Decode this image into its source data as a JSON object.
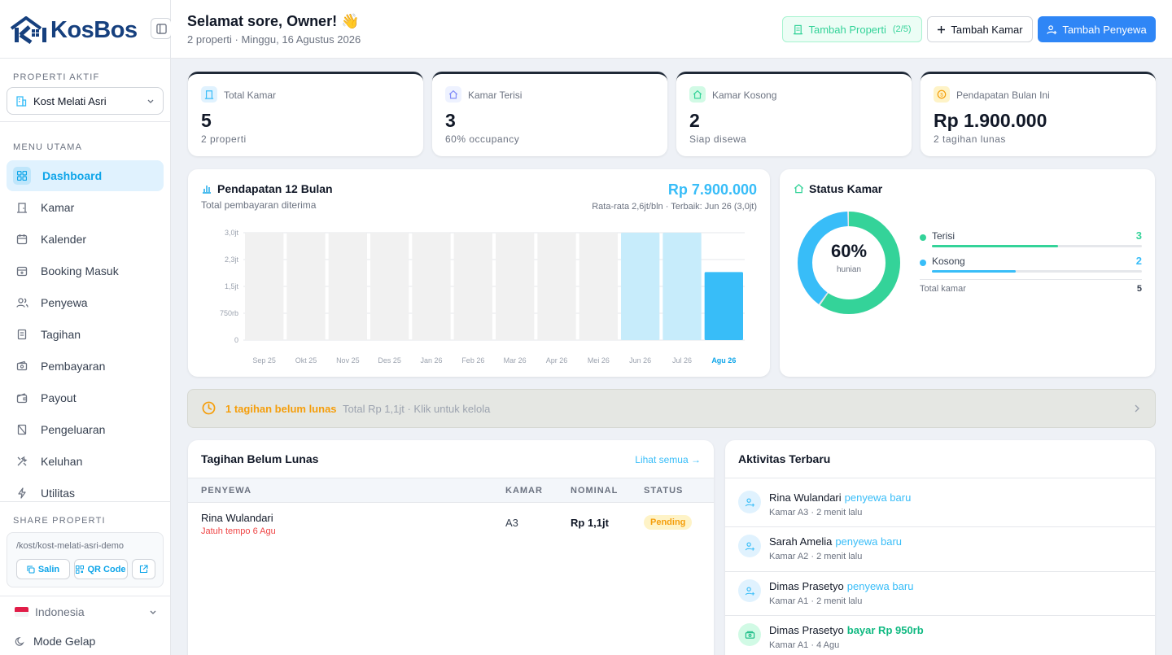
{
  "brand": {
    "name": "KosBos"
  },
  "sidebar": {
    "active_property_label": "PROPERTI AKTIF",
    "active_property": "Kost Melati Asri",
    "menu_label": "MENU UTAMA",
    "menu": [
      {
        "label": "Dashboard",
        "icon": "dashboard-icon",
        "active": true
      },
      {
        "label": "Kamar",
        "icon": "door-icon"
      },
      {
        "label": "Kalender",
        "icon": "calendar-icon"
      },
      {
        "label": "Booking Masuk",
        "icon": "calendar-plus-icon"
      },
      {
        "label": "Penyewa",
        "icon": "users-icon"
      },
      {
        "label": "Tagihan",
        "icon": "receipt-icon"
      },
      {
        "label": "Pembayaran",
        "icon": "payment-icon"
      },
      {
        "label": "Payout",
        "icon": "wallet-icon"
      },
      {
        "label": "Pengeluaran",
        "icon": "expense-icon"
      },
      {
        "label": "Keluhan",
        "icon": "tools-icon"
      },
      {
        "label": "Utilitas",
        "icon": "bolt-icon"
      }
    ],
    "share_label": "SHARE PROPERTI",
    "share_url": "/kost/kost-melati-asri-demo",
    "copy_label": "Salin",
    "qr_label": "QR Code",
    "language": "Indonesia",
    "dark_mode": "Mode Gelap"
  },
  "header": {
    "greeting": "Selamat sore, Owner! 👋",
    "subtitle": "2 properti · Minggu, 16 Agustus 2026",
    "add_property": "Tambah Properti",
    "add_property_count": "(2/5)",
    "add_room": "Tambah Kamar",
    "add_tenant": "Tambah Penyewa"
  },
  "stats": [
    {
      "label": "Total Kamar",
      "value": "5",
      "sub": "2 properti",
      "color": "#38bdf8"
    },
    {
      "label": "Kamar Terisi",
      "value": "3",
      "sub": "60% occupancy",
      "color": "#818cf8"
    },
    {
      "label": "Kamar Kosong",
      "value": "2",
      "sub": "Siap disewa",
      "color": "#34d399"
    },
    {
      "label": "Pendapatan Bulan Ini",
      "value": "Rp 1.900.000",
      "sub": "2 tagihan lunas",
      "color": "#fbbf24"
    }
  ],
  "revenue": {
    "title": "Pendapatan 12 Bulan",
    "subtitle": "Total pembayaran diterima",
    "total": "Rp 7.900.000",
    "summary": "Rata-rata 2,6jt/bln · Terbaik: Jun 26 (3,0jt)"
  },
  "chart_data": {
    "type": "bar",
    "categories": [
      "Sep 25",
      "Okt 25",
      "Nov 25",
      "Des 25",
      "Jan 26",
      "Feb 26",
      "Mar 26",
      "Apr 26",
      "Mei 26",
      "Jun 26",
      "Jul 26",
      "Agu 26"
    ],
    "values": [
      0,
      0,
      0,
      0,
      0,
      0,
      0,
      0,
      0,
      3.0,
      3.0,
      1.9
    ],
    "ylim": [
      0,
      3.0
    ],
    "yticks": [
      "3,0jt",
      "2,3jt",
      "1,5jt",
      "750rb",
      "0"
    ],
    "grid": true,
    "highlight": "Agu 26",
    "colors": {
      "empty": "#f1f1f1",
      "past": "#c7ecfb",
      "current": "#38bdf8"
    }
  },
  "status": {
    "title": "Status Kamar",
    "percent": "60%",
    "percent_label": "hunian",
    "items": [
      {
        "label": "Terisi",
        "value": "3",
        "fraction": 0.6,
        "color": "#34d399"
      },
      {
        "label": "Kosong",
        "value": "2",
        "fraction": 0.4,
        "color": "#38bdf8"
      }
    ],
    "total_label": "Total kamar",
    "total": "5"
  },
  "alert": {
    "title": "1 tagihan belum lunas",
    "detail": "Total Rp 1,1jt · Klik untuk kelola"
  },
  "bills": {
    "title": "Tagihan Belum Lunas",
    "see_all": "Lihat semua →",
    "columns": [
      "PENYEWA",
      "KAMAR",
      "NOMINAL",
      "STATUS"
    ],
    "rows": [
      {
        "tenant": "Rina Wulandari",
        "due": "Jatuh tempo 6 Agu",
        "room": "A3",
        "amount": "Rp 1,1jt",
        "status": "Pending"
      }
    ]
  },
  "activity": {
    "title": "Aktivitas Terbaru",
    "items": [
      {
        "name": "Rina Wulandari",
        "kind": "penyewa baru",
        "sub": "Kamar A3 · 2 menit lalu",
        "icon": "user-plus-icon"
      },
      {
        "name": "Sarah Amelia",
        "kind": "penyewa baru",
        "sub": "Kamar A2 · 2 menit lalu",
        "icon": "user-plus-icon"
      },
      {
        "name": "Dimas Prasetyo",
        "kind": "penyewa baru",
        "sub": "Kamar A1 · 2 menit lalu",
        "icon": "user-plus-icon"
      },
      {
        "name": "Dimas Prasetyo",
        "kind": "bayar Rp 950rb",
        "sub": "Kamar A1 · 4 Agu",
        "icon": "money-icon"
      }
    ]
  }
}
